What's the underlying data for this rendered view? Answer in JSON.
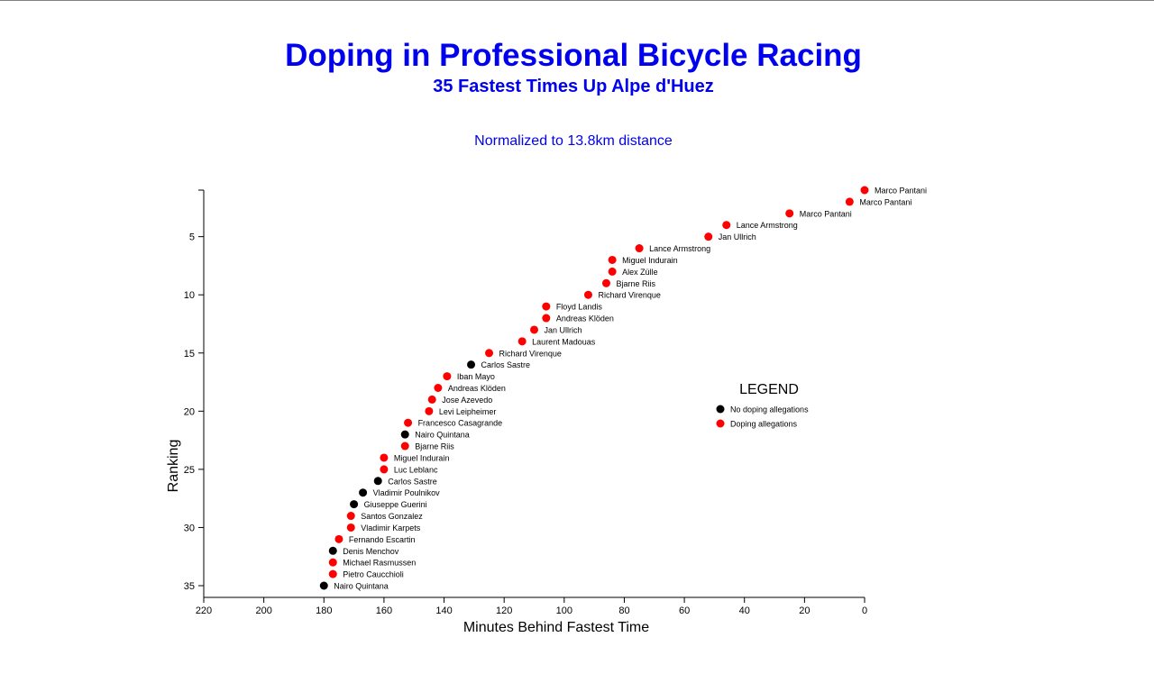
{
  "header": {
    "title": "Doping in Professional Bicycle Racing",
    "subtitle": "35 Fastest Times Up Alpe d'Huez",
    "note": "Normalized to 13.8km distance"
  },
  "colors": {
    "title": "#0000ee",
    "doping": "#ff0000",
    "no_doping": "#000000"
  },
  "legend": {
    "title": "LEGEND",
    "items": [
      {
        "label": "No doping allegations",
        "color": "#000000"
      },
      {
        "label": "Doping allegations",
        "color": "#ff0000"
      }
    ]
  },
  "chart_data": {
    "type": "scatter",
    "xlabel": "Minutes Behind Fastest Time",
    "ylabel": "Ranking",
    "xlim": [
      220,
      0
    ],
    "ylim": [
      1,
      35
    ],
    "x_ticks": [
      220,
      200,
      180,
      160,
      140,
      120,
      100,
      80,
      60,
      40,
      20,
      0
    ],
    "y_ticks": [
      5,
      10,
      15,
      20,
      25,
      30,
      35
    ],
    "legend_position": "right-middle",
    "grid": false,
    "points": [
      {
        "rank": 1,
        "minutes": 0,
        "name": "Marco Pantani",
        "doping": true
      },
      {
        "rank": 2,
        "minutes": 5,
        "name": "Marco Pantani",
        "doping": true
      },
      {
        "rank": 3,
        "minutes": 25,
        "name": "Marco Pantani",
        "doping": true
      },
      {
        "rank": 4,
        "minutes": 46,
        "name": "Lance Armstrong",
        "doping": true
      },
      {
        "rank": 5,
        "minutes": 52,
        "name": "Jan Ullrich",
        "doping": true
      },
      {
        "rank": 6,
        "minutes": 75,
        "name": "Lance Armstrong",
        "doping": true
      },
      {
        "rank": 7,
        "minutes": 84,
        "name": "Miguel Indurain",
        "doping": true
      },
      {
        "rank": 8,
        "minutes": 84,
        "name": "Alex Zülle",
        "doping": true
      },
      {
        "rank": 9,
        "minutes": 86,
        "name": "Bjarne Riis",
        "doping": true
      },
      {
        "rank": 10,
        "minutes": 92,
        "name": "Richard Virenque",
        "doping": true
      },
      {
        "rank": 11,
        "minutes": 106,
        "name": "Floyd Landis",
        "doping": true
      },
      {
        "rank": 12,
        "minutes": 106,
        "name": "Andreas Klöden",
        "doping": true
      },
      {
        "rank": 13,
        "minutes": 110,
        "name": "Jan Ullrich",
        "doping": true
      },
      {
        "rank": 14,
        "minutes": 114,
        "name": "Laurent Madouas",
        "doping": true
      },
      {
        "rank": 15,
        "minutes": 125,
        "name": "Richard Virenque",
        "doping": true
      },
      {
        "rank": 16,
        "minutes": 131,
        "name": "Carlos Sastre",
        "doping": false
      },
      {
        "rank": 17,
        "minutes": 139,
        "name": "Iban Mayo",
        "doping": true
      },
      {
        "rank": 18,
        "minutes": 142,
        "name": "Andreas Klöden",
        "doping": true
      },
      {
        "rank": 19,
        "minutes": 144,
        "name": "Jose Azevedo",
        "doping": true
      },
      {
        "rank": 20,
        "minutes": 145,
        "name": "Levi Leipheimer",
        "doping": true
      },
      {
        "rank": 21,
        "minutes": 152,
        "name": "Francesco Casagrande",
        "doping": true
      },
      {
        "rank": 22,
        "minutes": 153,
        "name": "Nairo Quintana",
        "doping": false
      },
      {
        "rank": 23,
        "minutes": 153,
        "name": "Bjarne Riis",
        "doping": true
      },
      {
        "rank": 24,
        "minutes": 160,
        "name": "Miguel Indurain",
        "doping": true
      },
      {
        "rank": 25,
        "minutes": 160,
        "name": "Luc Leblanc",
        "doping": true
      },
      {
        "rank": 26,
        "minutes": 162,
        "name": "Carlos Sastre",
        "doping": false
      },
      {
        "rank": 27,
        "minutes": 167,
        "name": "Vladimir Poulnikov",
        "doping": false
      },
      {
        "rank": 28,
        "minutes": 170,
        "name": "Giuseppe Guerini",
        "doping": false
      },
      {
        "rank": 29,
        "minutes": 171,
        "name": "Santos Gonzalez",
        "doping": true
      },
      {
        "rank": 30,
        "minutes": 171,
        "name": "Vladimir Karpets",
        "doping": true
      },
      {
        "rank": 31,
        "minutes": 175,
        "name": "Fernando Escartin",
        "doping": true
      },
      {
        "rank": 32,
        "minutes": 177,
        "name": "Denis Menchov",
        "doping": false
      },
      {
        "rank": 33,
        "minutes": 177,
        "name": "Michael Rasmussen",
        "doping": true
      },
      {
        "rank": 34,
        "minutes": 177,
        "name": "Pietro Caucchioli",
        "doping": true
      },
      {
        "rank": 35,
        "minutes": 180,
        "name": "Nairo Quintana",
        "doping": false
      }
    ]
  }
}
